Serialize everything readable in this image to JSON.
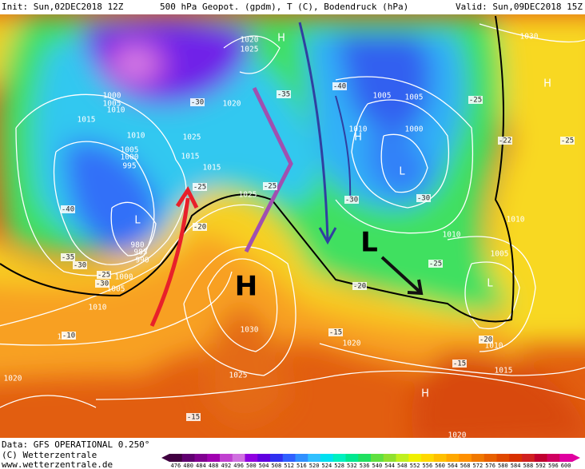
{
  "header": {
    "init": "Init: Sun,02DEC2018 12Z",
    "title": "500 hPa Geopot. (gpdm), T (C), Bodendruck (hPa)",
    "valid": "Valid: Sun,09DEC2018 15Z"
  },
  "footer": {
    "data": "Data: GFS OPERATIONAL 0.250°",
    "copyright": "(C) Wetterzentrale",
    "url": "www.wetterzentrale.de"
  },
  "legend": {
    "values": [
      476,
      480,
      484,
      488,
      492,
      496,
      500,
      504,
      508,
      512,
      516,
      520,
      524,
      528,
      532,
      536,
      540,
      544,
      548,
      552,
      556,
      560,
      564,
      568,
      572,
      576,
      580,
      584,
      588,
      592,
      596,
      600
    ],
    "colors": [
      "#400040",
      "#600070",
      "#800090",
      "#a000b0",
      "#c040d0",
      "#d070e0",
      "#9000e0",
      "#6000e0",
      "#3030f0",
      "#3060ff",
      "#3090ff",
      "#30c0ff",
      "#00e0f0",
      "#00f0c0",
      "#00e890",
      "#20e060",
      "#60e040",
      "#90e030",
      "#c0f020",
      "#f0f000",
      "#ffd800",
      "#ffc000",
      "#ffa800",
      "#ff9000",
      "#f07800",
      "#e86000",
      "#e04800",
      "#d83000",
      "#d02020",
      "#c00030",
      "#d00060",
      "#e000a0"
    ]
  },
  "map": {
    "pressure_labels": [
      "1020",
      "1025",
      "1000",
      "1005",
      "1010",
      "1015",
      "1010",
      "1005",
      "1000",
      "995",
      "1020",
      "1025",
      "1015",
      "1015",
      "1025",
      "980",
      "985",
      "990",
      "1000",
      "1005",
      "1010",
      "1015",
      "1030",
      "1025",
      "1020",
      "1015",
      "1010",
      "1005",
      "1010",
      "1010",
      "1000",
      "1005",
      "1005",
      "1010",
      "1030",
      "1020",
      "1020"
    ],
    "temperature_labels": [
      "-40",
      "-35",
      "-30",
      "-25",
      "-30",
      "-30",
      "-35",
      "-25",
      "-20",
      "-25",
      "-40",
      "-30",
      "-30",
      "-25",
      "-20",
      "-25",
      "-22",
      "-25",
      "-15",
      "-15",
      "-20",
      "-15",
      "-10"
    ],
    "centers": [
      "H",
      "H",
      "L",
      "L",
      "H",
      "L",
      "H"
    ],
    "main_high": "H",
    "main_low": "L"
  }
}
